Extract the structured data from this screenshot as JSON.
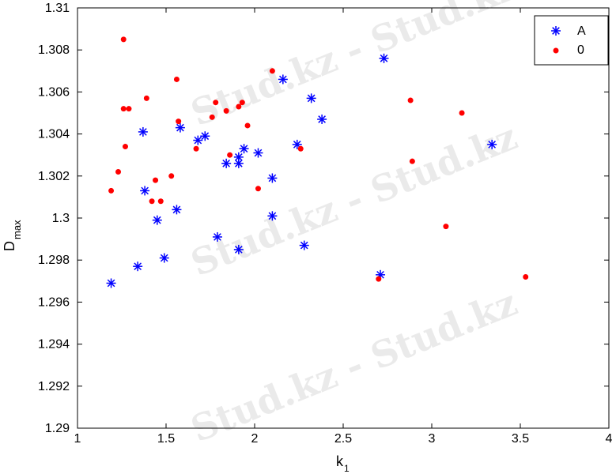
{
  "watermark": {
    "text": "Stud.kz - Stud.kz"
  },
  "chart_data": {
    "type": "scatter",
    "xlabel": "k",
    "xlabel_sub": "1",
    "ylabel": "D",
    "ylabel_sub": "max",
    "xlim": [
      1,
      4
    ],
    "ylim": [
      1.29,
      1.31
    ],
    "xticks": [
      1,
      1.5,
      2,
      2.5,
      3,
      3.5,
      4
    ],
    "xtick_labels": [
      "1",
      "1.5",
      "2",
      "2.5",
      "3",
      "3.5",
      "4"
    ],
    "yticks": [
      1.29,
      1.292,
      1.294,
      1.296,
      1.298,
      1.3,
      1.302,
      1.304,
      1.306,
      1.308,
      1.31
    ],
    "ytick_labels": [
      "1.29",
      "1.292",
      "1.294",
      "1.296",
      "1.298",
      "1.3",
      "1.302",
      "1.304",
      "1.306",
      "1.308",
      "1.31"
    ],
    "grid": false,
    "legend_position": "top-right",
    "series": [
      {
        "name": "A",
        "marker": "asterisk",
        "color": "#0000ff",
        "points": [
          [
            1.19,
            1.2969
          ],
          [
            1.34,
            1.2977
          ],
          [
            1.49,
            1.2981
          ],
          [
            1.37,
            1.3041
          ],
          [
            1.38,
            1.3013
          ],
          [
            1.45,
            1.2999
          ],
          [
            1.56,
            1.3004
          ],
          [
            1.58,
            1.3043
          ],
          [
            1.68,
            1.3037
          ],
          [
            1.72,
            1.3039
          ],
          [
            1.79,
            1.2991
          ],
          [
            1.84,
            1.3026
          ],
          [
            1.91,
            1.3029
          ],
          [
            1.91,
            1.3026
          ],
          [
            1.91,
            1.2985
          ],
          [
            1.94,
            1.3033
          ],
          [
            2.02,
            1.3031
          ],
          [
            2.1,
            1.3019
          ],
          [
            2.1,
            1.3001
          ],
          [
            2.16,
            1.3066
          ],
          [
            2.24,
            1.3035
          ],
          [
            2.28,
            1.2987
          ],
          [
            2.32,
            1.3057
          ],
          [
            2.38,
            1.3047
          ],
          [
            2.71,
            1.2973
          ],
          [
            2.73,
            1.3076
          ],
          [
            3.34,
            1.3035
          ]
        ]
      },
      {
        "name": "0",
        "marker": "dot",
        "color": "#ff0000",
        "points": [
          [
            1.19,
            1.3013
          ],
          [
            1.23,
            1.3022
          ],
          [
            1.26,
            1.3085
          ],
          [
            1.26,
            1.3052
          ],
          [
            1.27,
            1.3034
          ],
          [
            1.29,
            1.3052
          ],
          [
            1.39,
            1.3057
          ],
          [
            1.42,
            1.3008
          ],
          [
            1.44,
            1.3018
          ],
          [
            1.47,
            1.3008
          ],
          [
            1.53,
            1.302
          ],
          [
            1.56,
            1.3066
          ],
          [
            1.57,
            1.3046
          ],
          [
            1.67,
            1.3033
          ],
          [
            1.76,
            1.3048
          ],
          [
            1.78,
            1.3055
          ],
          [
            1.84,
            1.3051
          ],
          [
            1.86,
            1.303
          ],
          [
            1.91,
            1.3053
          ],
          [
            1.93,
            1.3055
          ],
          [
            1.96,
            1.3044
          ],
          [
            2.02,
            1.3014
          ],
          [
            2.1,
            1.307
          ],
          [
            2.26,
            1.3033
          ],
          [
            2.7,
            1.2971
          ],
          [
            2.88,
            1.3056
          ],
          [
            2.89,
            1.3027
          ],
          [
            3.08,
            1.2996
          ],
          [
            3.17,
            1.305
          ],
          [
            3.53,
            1.2972
          ]
        ]
      }
    ]
  }
}
